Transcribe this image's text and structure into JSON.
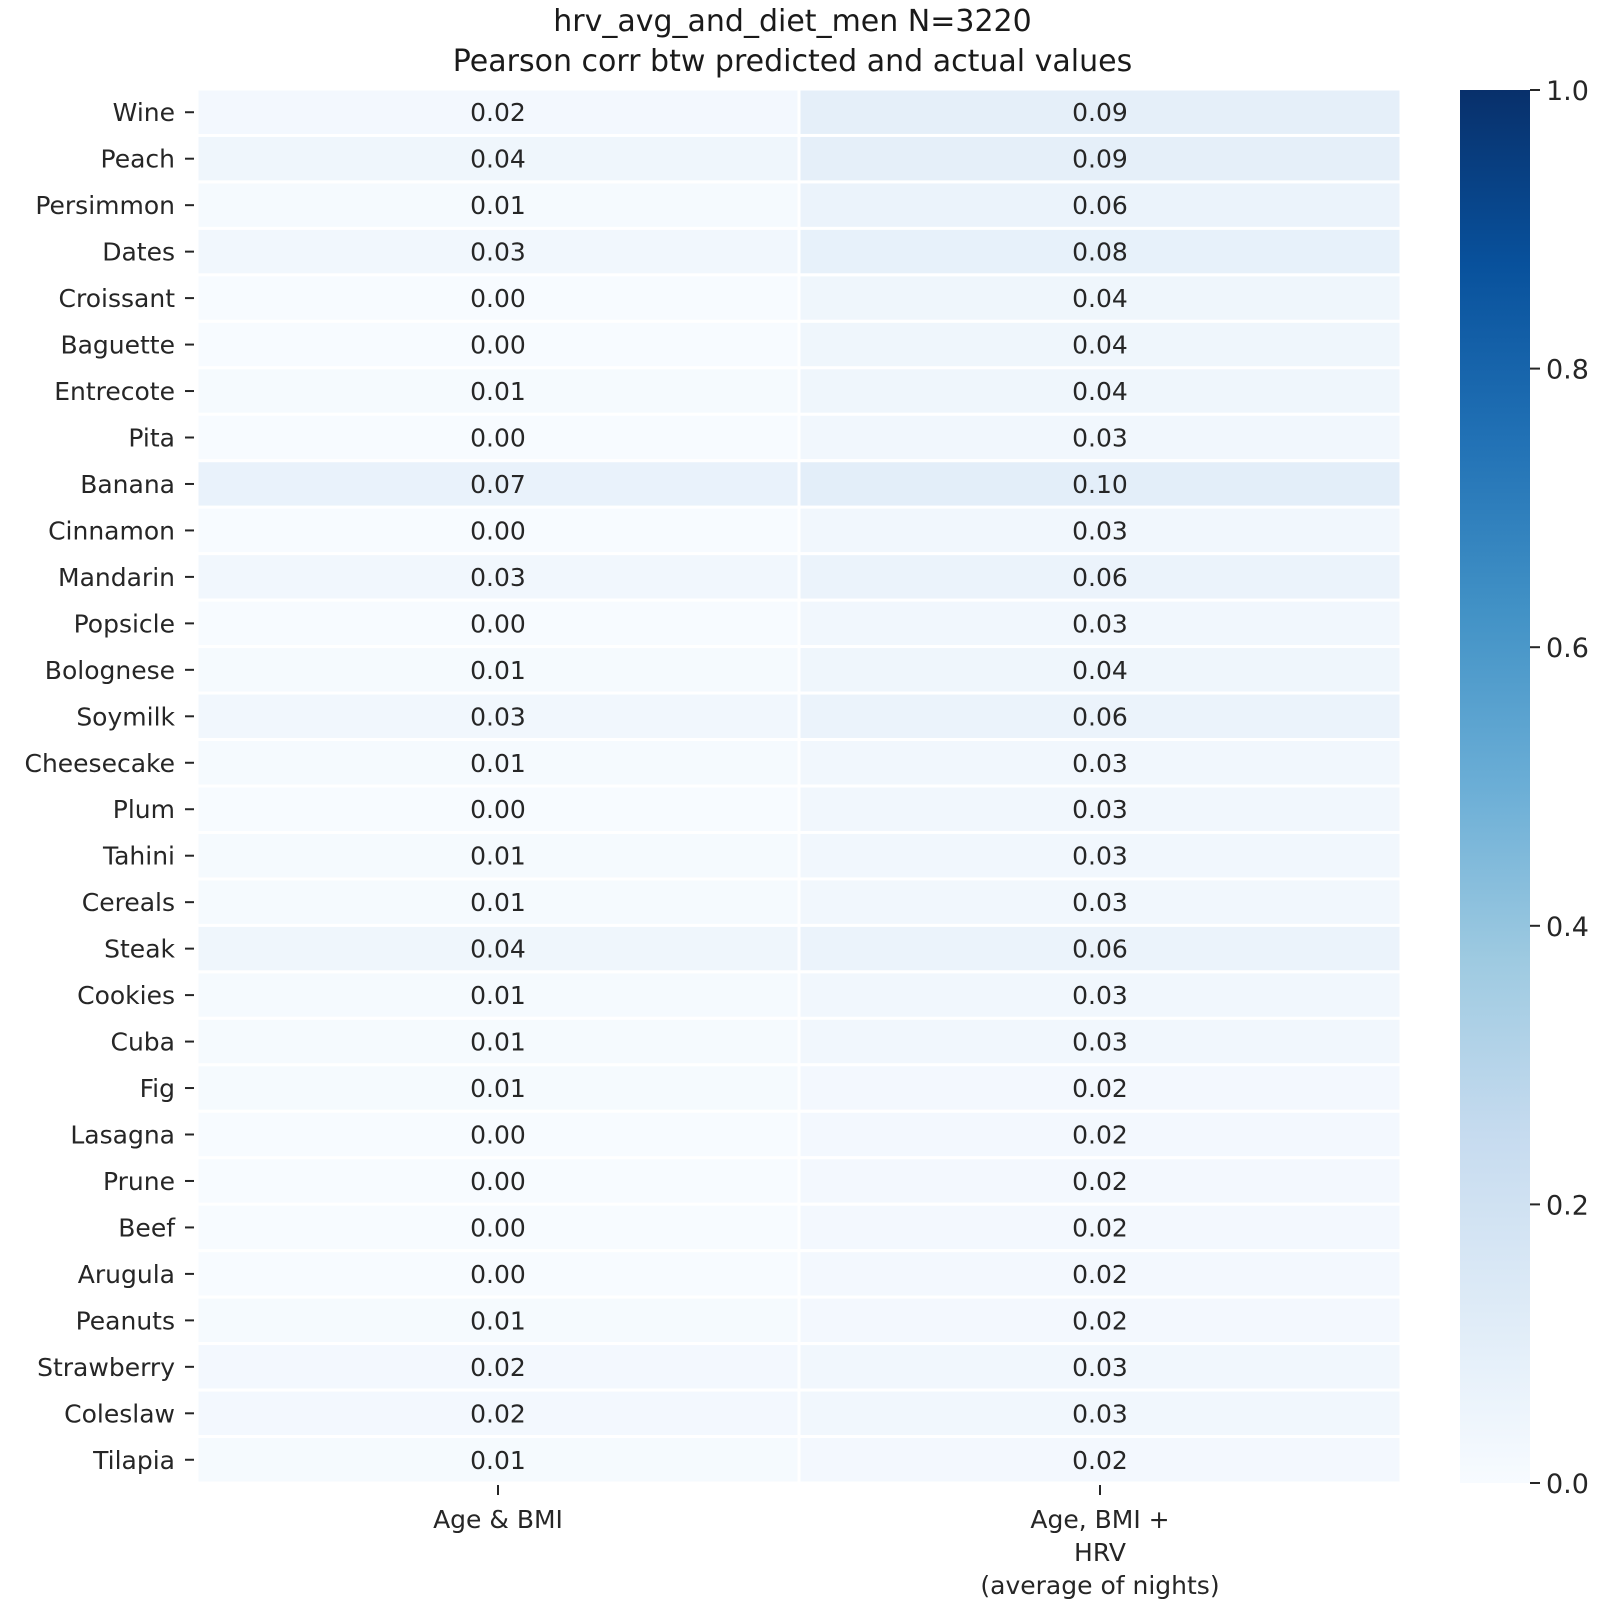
{
  "chart_data": {
    "type": "heatmap",
    "title": [
      "hrv_avg_and_diet_men N=3220",
      "Pearson corr btw predicted and actual values"
    ],
    "columns": [
      {
        "label": [
          "Age & BMI"
        ]
      },
      {
        "label": [
          "Age, BMI +",
          "HRV",
          "(average of nights)"
        ]
      }
    ],
    "rows": [
      "Wine",
      "Peach",
      "Persimmon",
      "Dates",
      "Croissant",
      "Baguette",
      "Entrecote",
      "Pita",
      "Banana",
      "Cinnamon",
      "Mandarin",
      "Popsicle",
      "Bolognese",
      "Soymilk",
      "Cheesecake",
      "Plum",
      "Tahini",
      "Cereals",
      "Steak",
      "Cookies",
      "Cuba",
      "Fig",
      "Lasagna",
      "Prune",
      "Beef",
      "Arugula",
      "Peanuts",
      "Strawberry",
      "Coleslaw",
      "Tilapia"
    ],
    "values": [
      [
        0.02,
        0.09
      ],
      [
        0.04,
        0.09
      ],
      [
        0.01,
        0.06
      ],
      [
        0.03,
        0.08
      ],
      [
        0.0,
        0.04
      ],
      [
        0.0,
        0.04
      ],
      [
        0.01,
        0.04
      ],
      [
        0.0,
        0.03
      ],
      [
        0.07,
        0.1
      ],
      [
        0.0,
        0.03
      ],
      [
        0.03,
        0.06
      ],
      [
        0.0,
        0.03
      ],
      [
        0.01,
        0.04
      ],
      [
        0.03,
        0.06
      ],
      [
        0.01,
        0.03
      ],
      [
        0.0,
        0.03
      ],
      [
        0.01,
        0.03
      ],
      [
        0.01,
        0.03
      ],
      [
        0.04,
        0.06
      ],
      [
        0.01,
        0.03
      ],
      [
        0.01,
        0.03
      ],
      [
        0.01,
        0.02
      ],
      [
        0.0,
        0.02
      ],
      [
        0.0,
        0.02
      ],
      [
        0.0,
        0.02
      ],
      [
        0.0,
        0.02
      ],
      [
        0.01,
        0.02
      ],
      [
        0.02,
        0.03
      ],
      [
        0.02,
        0.03
      ],
      [
        0.01,
        0.02
      ]
    ],
    "colorbar": {
      "range": [
        0.0,
        1.0
      ],
      "ticks": [
        "0.0",
        "0.2",
        "0.4",
        "0.6",
        "0.8",
        "1.0"
      ],
      "colormap": "Blues",
      "colors": [
        "#f7fbff",
        "#deebf7",
        "#c6dbef",
        "#9ecae1",
        "#6baed6",
        "#4292c6",
        "#2171b5",
        "#08519c",
        "#08306b"
      ]
    }
  }
}
